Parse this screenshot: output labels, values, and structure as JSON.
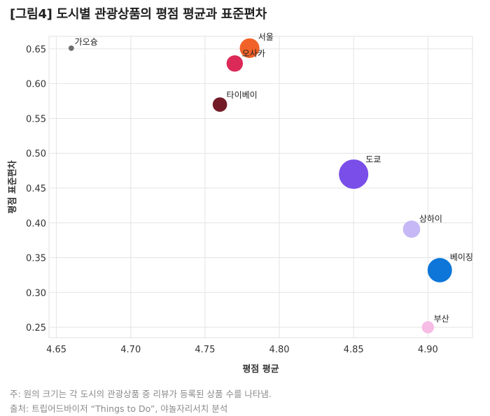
{
  "title": "[그림4] 도시별 관광상품의 평점 평균과 표준편차",
  "notes": {
    "note": "주: 원의 크기는 각 도시의 관광상품 중 리뷰가 등록된 상품 수를 나타냄.",
    "source": "출처: 트립어드바이저 “Things to Do”, 야놀자리서치 분석"
  },
  "chart_data": {
    "type": "scatter",
    "title": "[그림4] 도시별 관광상품의 평점 평균과 표준편차",
    "xlabel": "평점 평균",
    "ylabel": "평점 표준편차",
    "xlim": [
      4.645,
      4.93
    ],
    "ylim": [
      0.235,
      0.668
    ],
    "xticks": [
      "4.65",
      "4.70",
      "4.75",
      "4.80",
      "4.85",
      "4.90"
    ],
    "yticks": [
      "0.25",
      "0.30",
      "0.35",
      "0.40",
      "0.45",
      "0.50",
      "0.55",
      "0.60",
      "0.65"
    ],
    "grid": true,
    "points": [
      {
        "label": "가오슝",
        "x": 4.66,
        "y": 0.651,
        "size": 1,
        "color": "#666666"
      },
      {
        "label": "서울",
        "x": 4.78,
        "y": 0.651,
        "size": 13,
        "color": "#f05a1e"
      },
      {
        "label": "오사카",
        "x": 4.77,
        "y": 0.629,
        "size": 9,
        "color": "#d91d4f"
      },
      {
        "label": "타이베이",
        "x": 4.76,
        "y": 0.57,
        "size": 7,
        "color": "#6d0f1c"
      },
      {
        "label": "도쿄",
        "x": 4.85,
        "y": 0.47,
        "size": 29,
        "color": "#7244e8"
      },
      {
        "label": "상하이",
        "x": 4.889,
        "y": 0.391,
        "size": 10,
        "color": "#c3b4f5"
      },
      {
        "label": "베이징",
        "x": 4.908,
        "y": 0.332,
        "size": 20,
        "color": "#006fd6"
      },
      {
        "label": "부산",
        "x": 4.9,
        "y": 0.25,
        "size": 5,
        "color": "#f6b9e6"
      }
    ],
    "note": "원의 크기는 각 도시의 관광상품 중 리뷰가 등록된 상품 수"
  }
}
